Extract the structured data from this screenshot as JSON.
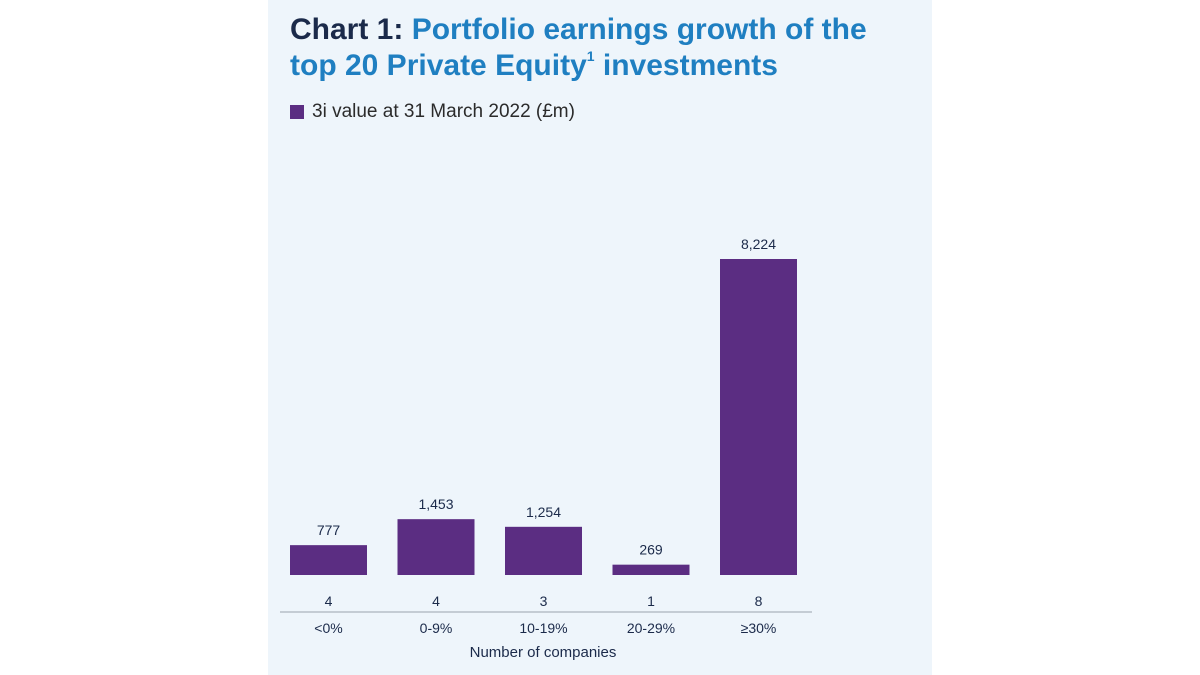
{
  "chart_data": {
    "type": "bar",
    "title_prefix": "Chart 1:",
    "title_main": "Portfolio earnings growth of the top 20 Private Equity",
    "title_superscript": "1",
    "title_suffix": "investments",
    "legend": [
      {
        "name": "3i value at 31 March 2022 (£m)",
        "color": "#5b2d82"
      }
    ],
    "categories": [
      "<0%",
      "0-9%",
      "10-19%",
      "20-29%",
      "≥30%"
    ],
    "series": [
      {
        "name": "3i value at 31 March 2022 (£m)",
        "values": [
          777,
          1453,
          1254,
          269,
          8224
        ],
        "color": "#5b2d82"
      }
    ],
    "value_labels": [
      "777",
      "1,453",
      "1,254",
      "269",
      "8,224"
    ],
    "company_counts": [
      "4",
      "4",
      "3",
      "1",
      "8"
    ],
    "xlabel": "Number of companies",
    "ylabel": "",
    "ylim": [
      0,
      8224
    ],
    "grid": false,
    "legend_position": "top-left"
  }
}
